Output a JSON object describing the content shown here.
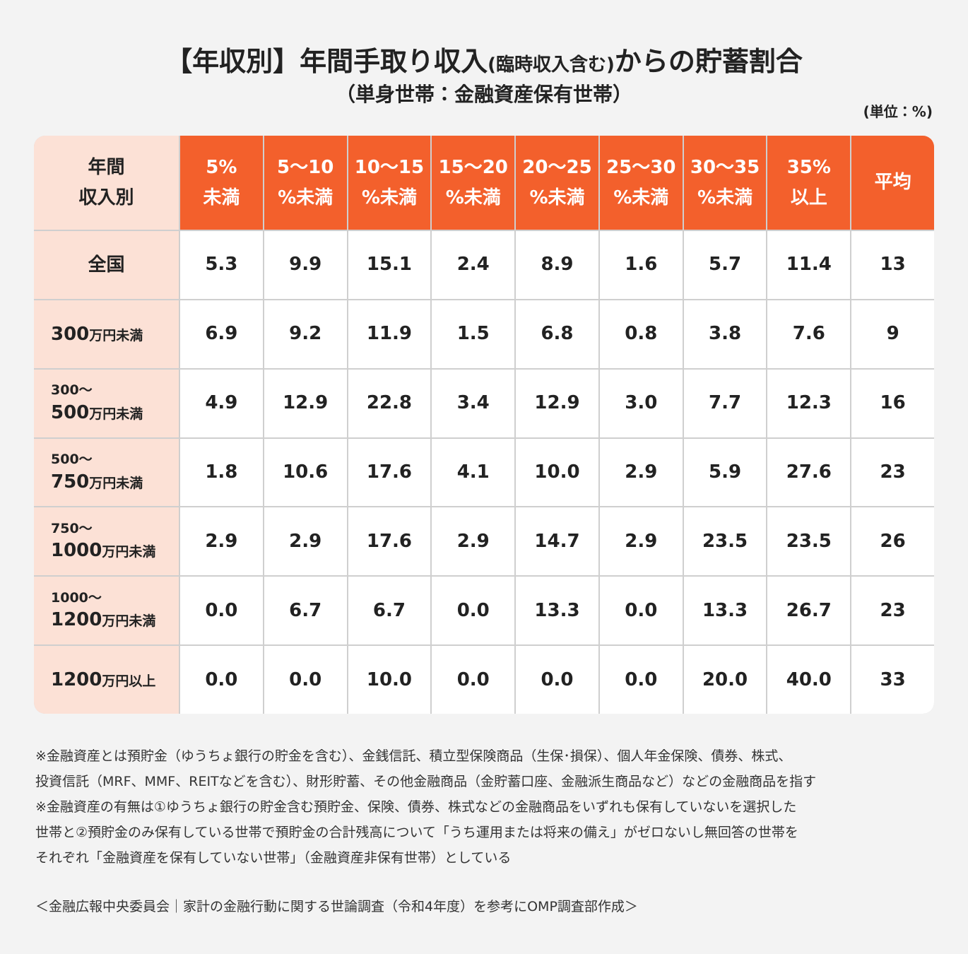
{
  "title": {
    "parts": [
      "【年収別】年間手取り収入",
      "(臨時収入含む)",
      "からの貯蓄割合"
    ]
  },
  "subtitle": "（単身世帯：金融資産保有世帯）",
  "unit": "(単位：%)",
  "table": {
    "corner": [
      "年間",
      "収入別"
    ],
    "columns": [
      [
        "5%",
        "未満"
      ],
      [
        "5〜10",
        "%未満"
      ],
      [
        "10〜15",
        "%未満"
      ],
      [
        "15〜20",
        "%未満"
      ],
      [
        "20〜25",
        "%未満"
      ],
      [
        "25〜30",
        "%未満"
      ],
      [
        "30〜35",
        "%未満"
      ],
      [
        "35%",
        "以上"
      ],
      [
        "平均"
      ]
    ],
    "rows": [
      {
        "label": [
          [
            "全国"
          ]
        ],
        "values": [
          "5.3",
          "9.9",
          "15.1",
          "2.4",
          "8.9",
          "1.6",
          "5.7",
          "11.4",
          "13"
        ]
      },
      {
        "label": [
          [
            "300",
            "万円未満"
          ]
        ],
        "values": [
          "6.9",
          "9.2",
          "11.9",
          "1.5",
          "6.8",
          "0.8",
          "3.8",
          "7.6",
          "9"
        ]
      },
      {
        "label": [
          [
            "300〜"
          ],
          [
            "500",
            "万円未満"
          ]
        ],
        "values": [
          "4.9",
          "12.9",
          "22.8",
          "3.4",
          "12.9",
          "3.0",
          "7.7",
          "12.3",
          "16"
        ]
      },
      {
        "label": [
          [
            "500〜"
          ],
          [
            "750",
            "万円未満"
          ]
        ],
        "values": [
          "1.8",
          "10.6",
          "17.6",
          "4.1",
          "10.0",
          "2.9",
          "5.9",
          "27.6",
          "23"
        ]
      },
      {
        "label": [
          [
            "750〜"
          ],
          [
            "1000",
            "万円未満"
          ]
        ],
        "values": [
          "2.9",
          "2.9",
          "17.6",
          "2.9",
          "14.7",
          "2.9",
          "23.5",
          "23.5",
          "26"
        ]
      },
      {
        "label": [
          [
            "1000〜"
          ],
          [
            "1200",
            "万円未満"
          ]
        ],
        "values": [
          "0.0",
          "6.7",
          "6.7",
          "0.0",
          "13.3",
          "0.0",
          "13.3",
          "26.7",
          "23"
        ]
      },
      {
        "label": [
          [
            "1200",
            "万円以上"
          ]
        ],
        "values": [
          "0.0",
          "0.0",
          "10.0",
          "0.0",
          "0.0",
          "0.0",
          "20.0",
          "40.0",
          "33"
        ]
      }
    ]
  },
  "notes": [
    "※金融資産とは預貯金（ゆうちょ銀行の貯金を含む）、金銭信託、積立型保険商品（生保･損保）、個人年金保険、債券、株式、",
    "投資信託（MRF、MMF、REITなどを含む）、財形貯蓄、その他金融商品（金貯蓄口座、金融派生商品など）などの金融商品を指す",
    "※金融資産の有無は①ゆうちょ銀行の貯金含む預貯金、保険、債券、株式などの金融商品をいずれも保有していないを選択した",
    "世帯と②預貯金のみ保有している世帯で預貯金の合計残高について「うち運用または将来の備え」がゼロないし無回答の世帯を",
    "それぞれ「金融資産を保有していない世帯」（金融資産非保有世帯）としている"
  ],
  "source": "＜金融広報中央委員会｜家計の金融行動に関する世論調査（令和4年度）を参考にOMP調査部作成＞"
}
